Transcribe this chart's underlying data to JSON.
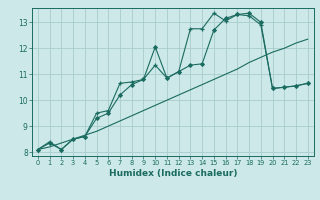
{
  "xlabel": "Humidex (Indice chaleur)",
  "background_color": "#cce8e8",
  "grid_color": "#aacccc",
  "line_color": "#1a6b60",
  "xlim": [
    -0.5,
    23.5
  ],
  "ylim": [
    7.85,
    13.55
  ],
  "xticks": [
    0,
    1,
    2,
    3,
    4,
    5,
    6,
    7,
    8,
    9,
    10,
    11,
    12,
    13,
    14,
    15,
    16,
    17,
    18,
    19,
    20,
    21,
    22,
    23
  ],
  "yticks": [
    8,
    9,
    10,
    11,
    12,
    13
  ],
  "line1_x": [
    0,
    1,
    2,
    3,
    4,
    5,
    6,
    7,
    8,
    9,
    10,
    11,
    12,
    13,
    14,
    15,
    16,
    17,
    18,
    19,
    20,
    21,
    22,
    23
  ],
  "line1_y": [
    8.1,
    8.4,
    8.1,
    8.5,
    8.6,
    9.5,
    9.6,
    10.65,
    10.7,
    10.8,
    11.35,
    10.85,
    11.1,
    12.75,
    12.75,
    13.35,
    13.05,
    13.3,
    13.25,
    12.9,
    10.45,
    10.5,
    10.55,
    10.65
  ],
  "line2_x": [
    0,
    1,
    2,
    3,
    4,
    5,
    6,
    7,
    8,
    9,
    10,
    11,
    12,
    13,
    14,
    15,
    16,
    17,
    18,
    19,
    20,
    21,
    22,
    23
  ],
  "line2_y": [
    8.1,
    8.35,
    8.1,
    8.5,
    8.6,
    9.3,
    9.5,
    10.2,
    10.6,
    10.8,
    12.05,
    10.85,
    11.1,
    11.35,
    11.4,
    12.7,
    13.15,
    13.3,
    13.35,
    13.0,
    10.45,
    10.5,
    10.55,
    10.65
  ],
  "line3_x": [
    0,
    1,
    2,
    3,
    4,
    5,
    6,
    7,
    8,
    9,
    10,
    11,
    12,
    13,
    14,
    15,
    16,
    17,
    18,
    19,
    20,
    21,
    22,
    23
  ],
  "line3_y": [
    8.1,
    8.2,
    8.35,
    8.5,
    8.65,
    8.8,
    9.0,
    9.2,
    9.4,
    9.6,
    9.8,
    10.0,
    10.2,
    10.4,
    10.6,
    10.8,
    11.0,
    11.2,
    11.45,
    11.65,
    11.85,
    12.0,
    12.2,
    12.35
  ]
}
